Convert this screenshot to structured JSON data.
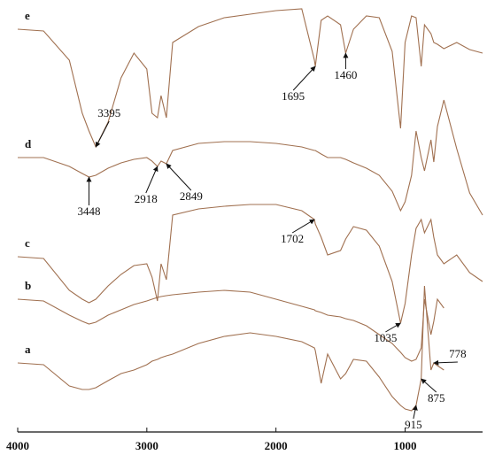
{
  "chart_data": {
    "type": "line",
    "x": [
      4000,
      3800,
      3600,
      3500,
      3448,
      3395,
      3300,
      3200,
      3100,
      3000,
      2960,
      2918,
      2890,
      2849,
      2800,
      2600,
      2400,
      2200,
      2000,
      1800,
      1702,
      1695,
      1650,
      1600,
      1500,
      1460,
      1400,
      1300,
      1200,
      1100,
      1035,
      1000,
      950,
      915,
      875,
      850,
      800,
      778,
      750,
      700,
      600,
      500,
      400
    ],
    "xlim": [
      4000,
      400
    ],
    "xticks": [
      4000,
      3000,
      2000,
      1000
    ],
    "ylim": [
      0,
      488
    ],
    "series": [
      {
        "name": "a",
        "color": "#a07050",
        "values": [
          78,
          76,
          52,
          48,
          48,
          50,
          58,
          66,
          70,
          76,
          80,
          82,
          84,
          86,
          88,
          100,
          108,
          112,
          108,
          102,
          95,
          92,
          55,
          88,
          60,
          66,
          82,
          80,
          62,
          40,
          30,
          26,
          24,
          30,
          60,
          165,
          70,
          78,
          75,
          70,
          null,
          null,
          null
        ],
        "peaks": [
          778,
          875,
          915
        ]
      },
      {
        "name": "b",
        "color": "#a07050",
        "values": [
          150,
          148,
          132,
          125,
          122,
          124,
          132,
          138,
          144,
          148,
          150,
          152,
          153,
          154,
          155,
          158,
          160,
          158,
          150,
          142,
          138,
          137,
          135,
          132,
          130,
          128,
          126,
          120,
          110,
          100,
          90,
          84,
          80,
          82,
          95,
          150,
          110,
          125,
          150,
          140,
          null,
          null,
          null
        ]
      },
      {
        "name": "c",
        "color": "#a07050",
        "values": [
          198,
          196,
          160,
          150,
          146,
          150,
          165,
          178,
          188,
          190,
          175,
          148,
          190,
          172,
          245,
          252,
          255,
          257,
          257,
          250,
          240,
          235,
          220,
          200,
          205,
          218,
          232,
          228,
          210,
          170,
          123,
          145,
          200,
          230,
          240,
          225,
          240,
          220,
          200,
          190,
          200,
          180,
          170
        ],
        "peaks": [
          1702,
          1035
        ]
      },
      {
        "name": "d",
        "color": "#a07050",
        "values": [
          310,
          310,
          300,
          292,
          288,
          290,
          298,
          304,
          308,
          310,
          306,
          300,
          306,
          303,
          318,
          326,
          328,
          328,
          326,
          322,
          318,
          318,
          314,
          310,
          310,
          308,
          304,
          298,
          290,
          272,
          250,
          260,
          290,
          340,
          310,
          295,
          330,
          305,
          345,
          375,
          320,
          270,
          245
        ],
        "peaks": [
          3448,
          2918,
          2849
        ]
      },
      {
        "name": "e",
        "color": "#a07050",
        "values": [
          455,
          453,
          420,
          360,
          340,
          322,
          350,
          400,
          428,
          410,
          360,
          355,
          380,
          355,
          440,
          458,
          468,
          472,
          476,
          478,
          420,
          413,
          465,
          470,
          460,
          428,
          455,
          470,
          468,
          430,
          343,
          440,
          470,
          468,
          413,
          460,
          450,
          440,
          438,
          433,
          440,
          432,
          428
        ],
        "peaks": [
          3395,
          1695,
          1460
        ]
      }
    ]
  }
}
